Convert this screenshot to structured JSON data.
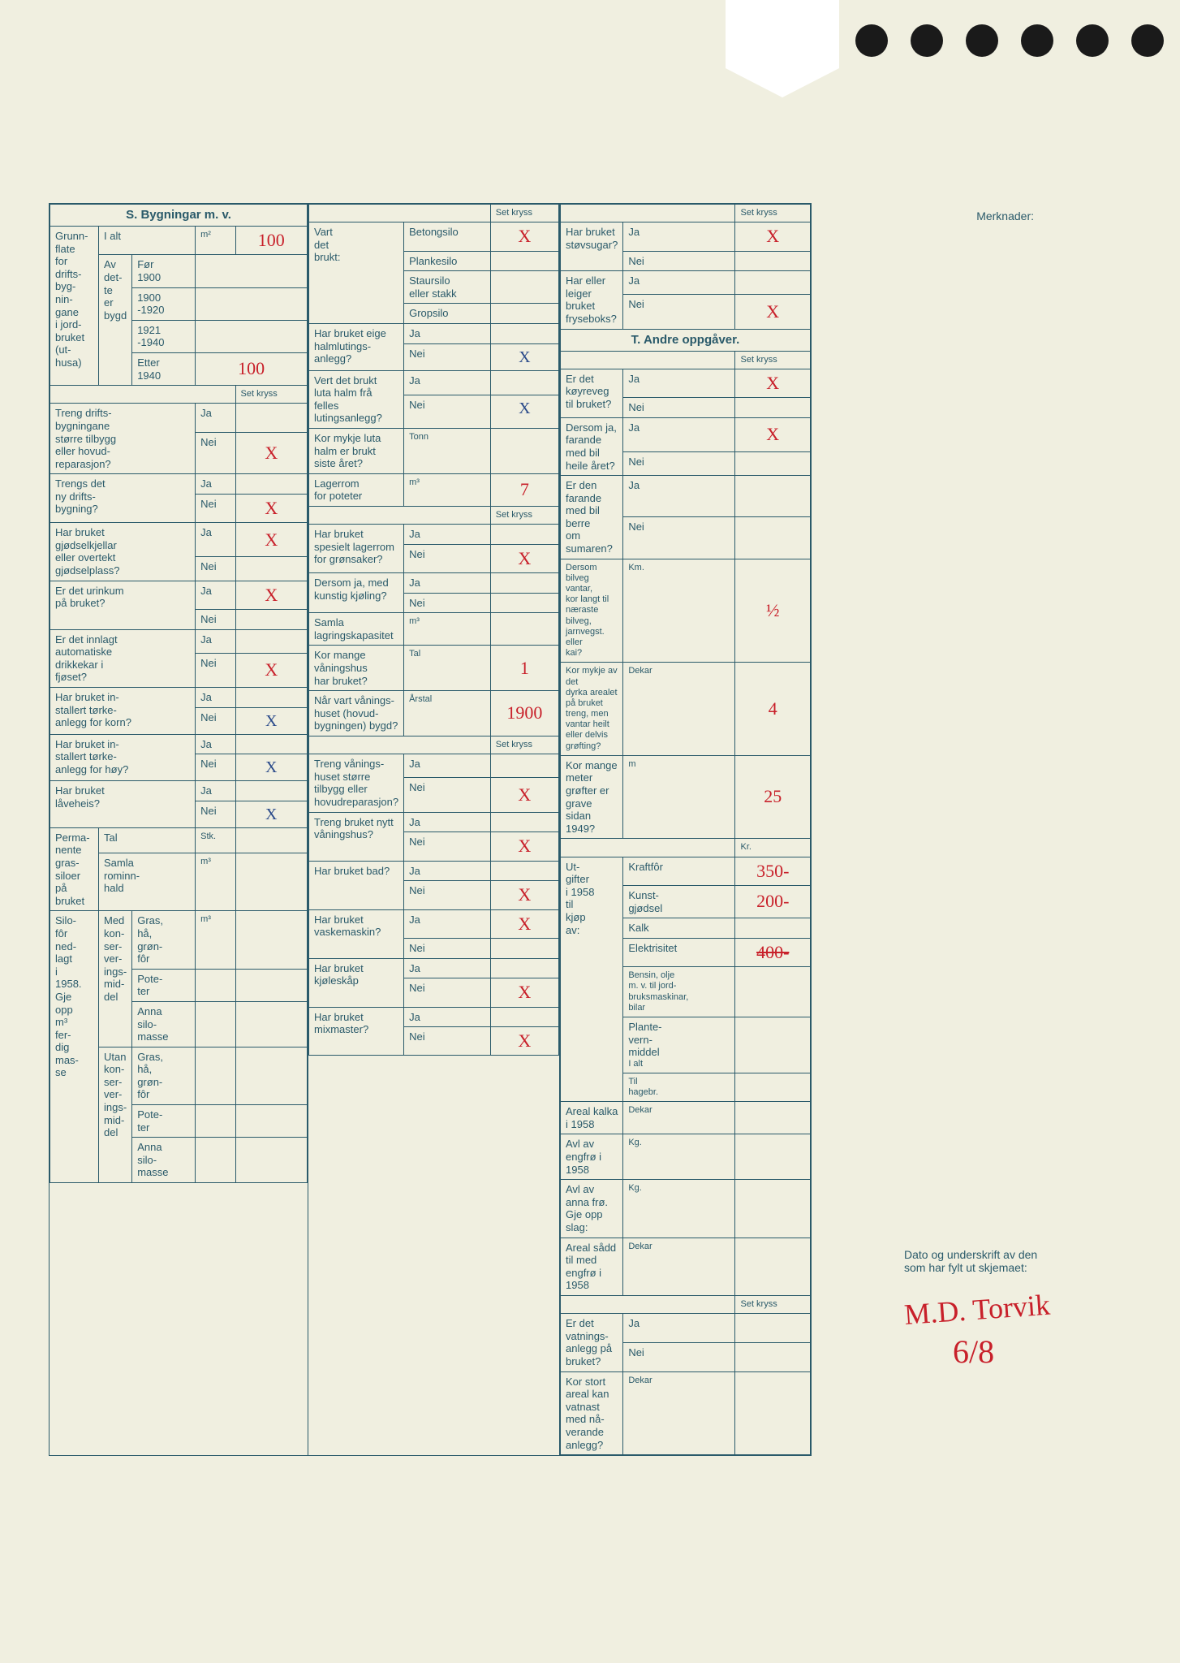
{
  "punch_count": 6,
  "merknader_label": "Merknader:",
  "section_s": {
    "title": "S. Bygningar m. v.",
    "grunnflate_label": "Grunn-\nflate\nfor\ndrifts-\nbyg-\nnin-\ngane\ni jord-\nbruket\n(ut-\nhusa)",
    "ialt": "I alt",
    "ialt_unit": "m²",
    "ialt_val": "100",
    "av_dette_bygd": "Av\ndet-\nte\ner\nbygd",
    "periods": {
      "for1900": "Før\n1900",
      "p1900_1920": "1900\n-1920",
      "p1921_1940": "1921\n-1940",
      "etter1940": "Etter\n1940",
      "etter1940_val": "100"
    },
    "set_kryss": "Set kryss",
    "q_treng_drifts": "Treng drifts-\nbygningane\nstørre tilbygg\neller hovud-\nreparasjon?",
    "ja": "Ja",
    "nei": "Nei",
    "treng_drifts_nei": "X",
    "q_trengs_ny": "Trengs det\nny drifts-\nbygning?",
    "trengs_ny_nei": "X",
    "q_gjodselkjeller": "Har bruket\ngjødselkjellar\neller overtekt\ngjødselplass?",
    "gjodselkjeller_ja": "X",
    "q_urinkum": "Er det urinkum\npå bruket?",
    "urinkum_ja": "X",
    "q_drikkekar": "Er det innlagt\nautomatiske\ndrikkekar i\nfjøset?",
    "drikkekar_nei": "X",
    "q_torke_korn": "Har bruket in-\nstallert tørke-\nanlegg for korn?",
    "torke_korn_nei": "X",
    "q_torke_hoy": "Har bruket in-\nstallert tørke-\nanlegg for høy?",
    "torke_hoy_nei": "X",
    "q_laveheis": "Har bruket\nlåveheis?",
    "laveheis_nei": "X",
    "perm_siloer": "Perma-\nnente\ngras-\nsiloer\npå\nbruket",
    "tal": "Tal",
    "stk": "Stk.",
    "samla_rominnhald": "Samla\nrominn-\nhald",
    "m3": "m³",
    "silofor": "Silo-\nfôr\nned-\nlagt\ni\n1958.\nGje\nopp\nm³\nfer-\ndig\nmas-\nse",
    "med_kons": "Med\nkon-\nser-\nver-\nings-\nmid-\ndel",
    "utan_kons": "Utan\nkon-\nser-\nver-\nings-\nmid-\ndel",
    "gras_ha": "Gras,\nhå,\ngrøn-\nfôr",
    "poteter": "Pote-\nter",
    "anna_silo": "Anna\nsilo-\nmasse"
  },
  "section_mid": {
    "vart_det_brukt": "Vart\ndet\nbrukt:",
    "betongsilo": "Betongsilo",
    "betongsilo_val": "X",
    "plankesilo": "Plankesilo",
    "staursilo": "Staursilo\neller stakk",
    "gropsilo": "Gropsilo",
    "q_halmlutings": "Har bruket eige\nhalmlutings-\nanlegg?",
    "halmlutings_nei": "X",
    "q_luta_halm": "Vert det brukt\nluta halm frå\nfelles lutingsanlegg?",
    "luta_halm_nei": "X",
    "q_kor_mykje_luta": "Kor mykje luta\nhalm er brukt\nsiste året?",
    "tonn": "Tonn",
    "q_lager_poteter": "Lagerrom\nfor poteter",
    "lager_poteter_val": "7",
    "q_lager_gronsaker": "Har bruket\nspesielt lagerrom\nfor grønsaker?",
    "lager_gronsaker_nei": "X",
    "q_kunstig_kjoling": "Dersom ja, med\nkunstig kjøling?",
    "q_samla_lagring": "Samla\nlagringskapasitet",
    "q_kor_mange_van": "Kor mange\nvåningshus\nhar bruket?",
    "van_tal": "1",
    "q_nar_bygd": "Når vart vånings-\nhuset (hovud-\nbygningen) bygd?",
    "arstal": "Årstal",
    "arstal_val": "1900",
    "q_treng_van": "Treng vånings-\nhuset større\ntilbygg eller\nhovudreparasjon?",
    "treng_van_nei": "X",
    "q_nytt_van": "Treng bruket nytt\nvåningshus?",
    "nytt_van_nei": "X",
    "q_bad": "Har bruket bad?",
    "bad_nei": "X",
    "q_vaskemaskin": "Har bruket\nvaskemaskin?",
    "vaskemaskin_ja": "X",
    "q_kjoleskap": "Har bruket\nkjøleskåp",
    "kjoleskap_nei": "X",
    "q_mixmaster": "Har bruket\nmixmaster?",
    "mixmaster_nei": "X"
  },
  "section_right": {
    "q_stovsugar": "Har bruket\nstøvsugar?",
    "stovsugar_ja": "X",
    "q_fryseboks": "Har eller leiger\nbruket fryseboks?",
    "fryseboks_nei": "X",
    "section_t_title": "T. Andre oppgåver.",
    "q_koyreveg": "Er det køyreveg\ntil bruket?",
    "koyreveg_ja": "X",
    "q_farande_heile": "Dersom ja,\nfarande med bil\nheile året?",
    "farande_heile_ja": "X",
    "q_farande_sumar": "Er den farande\nmed bil berre\nom sumaren?",
    "q_bilveg_vantar": "Dersom bilveg vantar,\nkor langt til næraste\nbilveg, jarnvegst. eller\nkai?",
    "km": "Km.",
    "km_val": "½",
    "q_dyrka_areal": "Kor mykje av det\ndyrka arealet på bruket\ntreng, men vantar heilt\neller delvis grøfting?",
    "dekar": "Dekar",
    "dekar_val": "4",
    "q_grofter": "Kor mange meter\ngrøfter er grave\nsidan 1949?",
    "m": "m",
    "m_val": "25",
    "utgifter": "Ut-\ngifter\ni 1958\ntil\nkjøp\nav:",
    "kr": "Kr.",
    "kraftfor": "Kraftfôr",
    "kraftfor_val": "350-",
    "kunstgjodsel": "Kunst-\ngjødsel",
    "kunstgjodsel_val": "200-",
    "kalk": "Kalk",
    "elektrisitet": "Elektrisitet",
    "elektrisitet_val": "400-",
    "bensin": "Bensin, olje\nm. v. til jord-\nbruksmaskinar,\nbilar",
    "plantevernmiddel": "Plante-\nvern-\nmiddel",
    "ialt": "I alt",
    "til_hagebr": "Til\nhagebr.",
    "q_areal_kalka": "Areal kalka\ni 1958",
    "q_avl_engfro": "Avl av engfrø i 1958",
    "kg": "Kg.",
    "q_avl_anna": "Avl av anna frø.\nGje opp slag:",
    "q_areal_sadd": "Areal sådd til med\nengfrø i 1958",
    "q_vatningsanlegg": "Er det vatnings-\nanlegg på bruket?",
    "q_kor_stort_vatnast": "Kor stort areal kan\nvatnast med nå-\nverande anlegg?"
  },
  "signature": {
    "prompt": "Dato og underskrift av den\nsom har fylt ut skjemaet:",
    "name": "M.D. Torvik",
    "date": "6/8"
  }
}
